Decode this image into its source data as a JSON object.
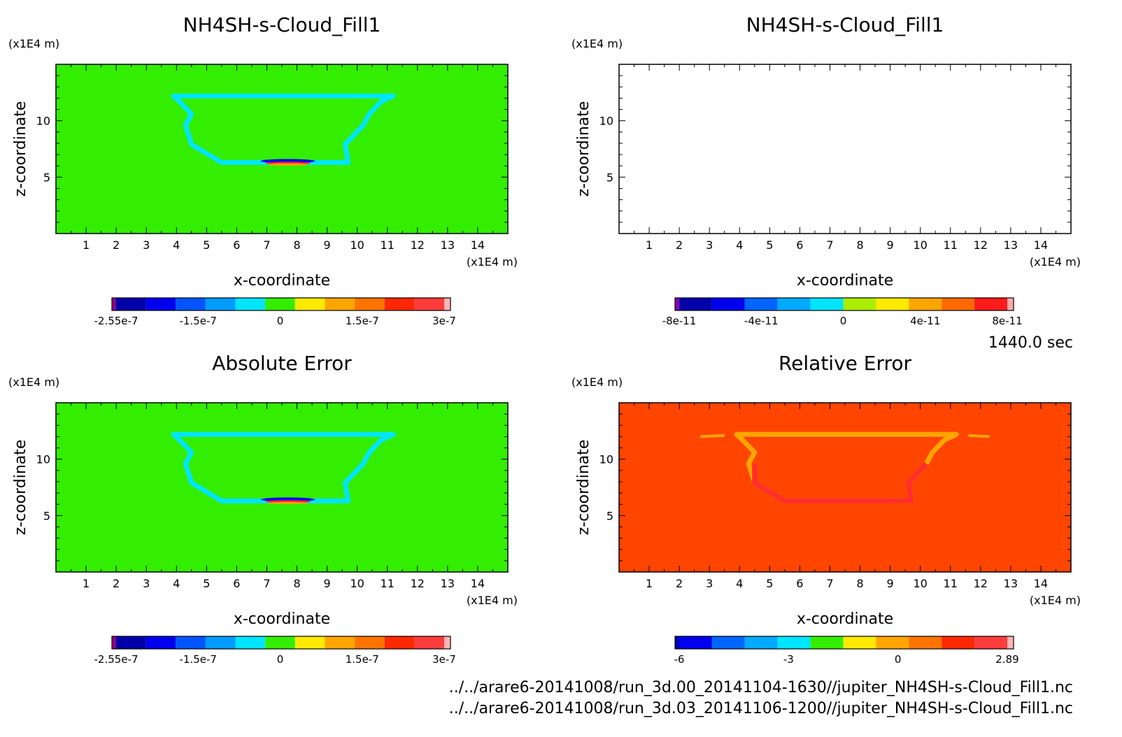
{
  "time_label": "1440.0 sec",
  "file_paths": [
    "../../arare6-20141008/run_3d.00_20141104-1630//jupiter_NH4SH-s-Cloud_Fill1.nc",
    "../../arare6-20141008/run_3d.03_20141106-1200//jupiter_NH4SH-s-Cloud_Fill1.nc"
  ],
  "colors": {
    "green": "#33ee00",
    "cyan": "#00e5ff",
    "red_orange": "#ff4500",
    "orange": "#ffa500",
    "red": "#ff2d2d",
    "blue": "#0000ee"
  },
  "chart_data": [
    {
      "type": "heatmap",
      "title": "NH4SH-s-Cloud_Fill1",
      "xlabel": "x-coordinate",
      "ylabel": "z-coordinate",
      "xunit": "(x1E4 m)",
      "yunit": "(x1E4 m)",
      "xlim": [
        0,
        15
      ],
      "ylim": [
        0,
        15
      ],
      "xticks": [
        "1",
        "2",
        "3",
        "4",
        "5",
        "6",
        "7",
        "8",
        "9",
        "10",
        "11",
        "12",
        "13",
        "14"
      ],
      "yticks": [
        "5",
        "10"
      ],
      "field": {
        "background": "#33ee00",
        "feature": "bowl",
        "feature_color": "#00e5ff",
        "top": 12.2,
        "bottom": 6.3,
        "x_left_top": 3.9,
        "x_right_top": 11.2,
        "x_left_bottom": 5.5,
        "x_right_bottom": 9.7,
        "core_x": [
          6.8,
          8.6
        ],
        "core_z": 6.3
      },
      "colorbar": {
        "colors": [
          "#8b008b",
          "#0000aa",
          "#0000ee",
          "#0055ff",
          "#009bff",
          "#00e5ff",
          "#33ee00",
          "#ffea00",
          "#ffa500",
          "#ff7300",
          "#ff2800",
          "#ff3c3c",
          "#ffb4b4"
        ],
        "labels": [
          "-2.55e-7",
          "-1.5e-7",
          "0",
          "1.5e-7",
          "3e-7"
        ]
      }
    },
    {
      "type": "heatmap",
      "title": "NH4SH-s-Cloud_Fill1",
      "xlabel": "x-coordinate",
      "ylabel": "z-coordinate",
      "xunit": "(x1E4 m)",
      "yunit": "(x1E4 m)",
      "xlim": [
        0,
        15
      ],
      "ylim": [
        0,
        15
      ],
      "xticks": [
        "1",
        "2",
        "3",
        "4",
        "5",
        "6",
        "7",
        "8",
        "9",
        "10",
        "11",
        "12",
        "13",
        "14"
      ],
      "yticks": [
        "5",
        "10"
      ],
      "field": {
        "background": "#ffffff",
        "feature": "none"
      },
      "colorbar": {
        "colors": [
          "#8b00aa",
          "#0000aa",
          "#0000ee",
          "#0066ff",
          "#00aaff",
          "#00e5ff",
          "#aaee00",
          "#ffea00",
          "#ffa500",
          "#ff6a00",
          "#ff1a1a",
          "#ffaaaa"
        ],
        "labels": [
          "-8e-11",
          "-4e-11",
          "0",
          "4e-11",
          "8e-11"
        ]
      }
    },
    {
      "type": "heatmap",
      "title": "Absolute Error",
      "xlabel": "x-coordinate",
      "ylabel": "z-coordinate",
      "xunit": "(x1E4 m)",
      "yunit": "(x1E4 m)",
      "xlim": [
        0,
        15
      ],
      "ylim": [
        0,
        15
      ],
      "xticks": [
        "1",
        "2",
        "3",
        "4",
        "5",
        "6",
        "7",
        "8",
        "9",
        "10",
        "11",
        "12",
        "13",
        "14"
      ],
      "yticks": [
        "5",
        "10"
      ],
      "field": {
        "background": "#33ee00",
        "feature": "bowl",
        "feature_color": "#00e5ff",
        "top": 12.2,
        "bottom": 6.3,
        "x_left_top": 3.9,
        "x_right_top": 11.2,
        "x_left_bottom": 5.5,
        "x_right_bottom": 9.7,
        "core_x": [
          6.8,
          8.6
        ],
        "core_z": 6.3
      },
      "colorbar": {
        "colors": [
          "#8b008b",
          "#0000aa",
          "#0000ee",
          "#0055ff",
          "#009bff",
          "#00e5ff",
          "#33ee00",
          "#ffea00",
          "#ffa500",
          "#ff7300",
          "#ff2800",
          "#ff3c3c",
          "#ffb4b4"
        ],
        "labels": [
          "-2.55e-7",
          "-1.5e-7",
          "0",
          "1.5e-7",
          "3e-7"
        ]
      }
    },
    {
      "type": "heatmap",
      "title": "Relative Error",
      "xlabel": "x-coordinate",
      "ylabel": "z-coordinate",
      "xunit": "(x1E4 m)",
      "yunit": "(x1E4 m)",
      "xlim": [
        0,
        15
      ],
      "ylim": [
        0,
        15
      ],
      "xticks": [
        "1",
        "2",
        "3",
        "4",
        "5",
        "6",
        "7",
        "8",
        "9",
        "10",
        "11",
        "12",
        "13",
        "14"
      ],
      "yticks": [
        "5",
        "10"
      ],
      "field": {
        "background": "#ff4500",
        "feature": "bowl",
        "feature_color": "#ffa500",
        "lower_color": "#ff2d2d",
        "top": 12.2,
        "bottom": 6.3,
        "x_left_top": 3.9,
        "x_right_top": 11.2,
        "x_left_bottom": 5.5,
        "x_right_bottom": 9.7
      },
      "colorbar": {
        "colors": [
          "#0000aa",
          "#0000ee",
          "#0066ff",
          "#00aaff",
          "#00e5ff",
          "#33ee00",
          "#ffea00",
          "#ffa500",
          "#ff7300",
          "#ff2800",
          "#ff3c3c",
          "#ffb4b4"
        ],
        "labels": [
          "-6",
          "-3",
          "0",
          "2.89"
        ]
      }
    }
  ]
}
